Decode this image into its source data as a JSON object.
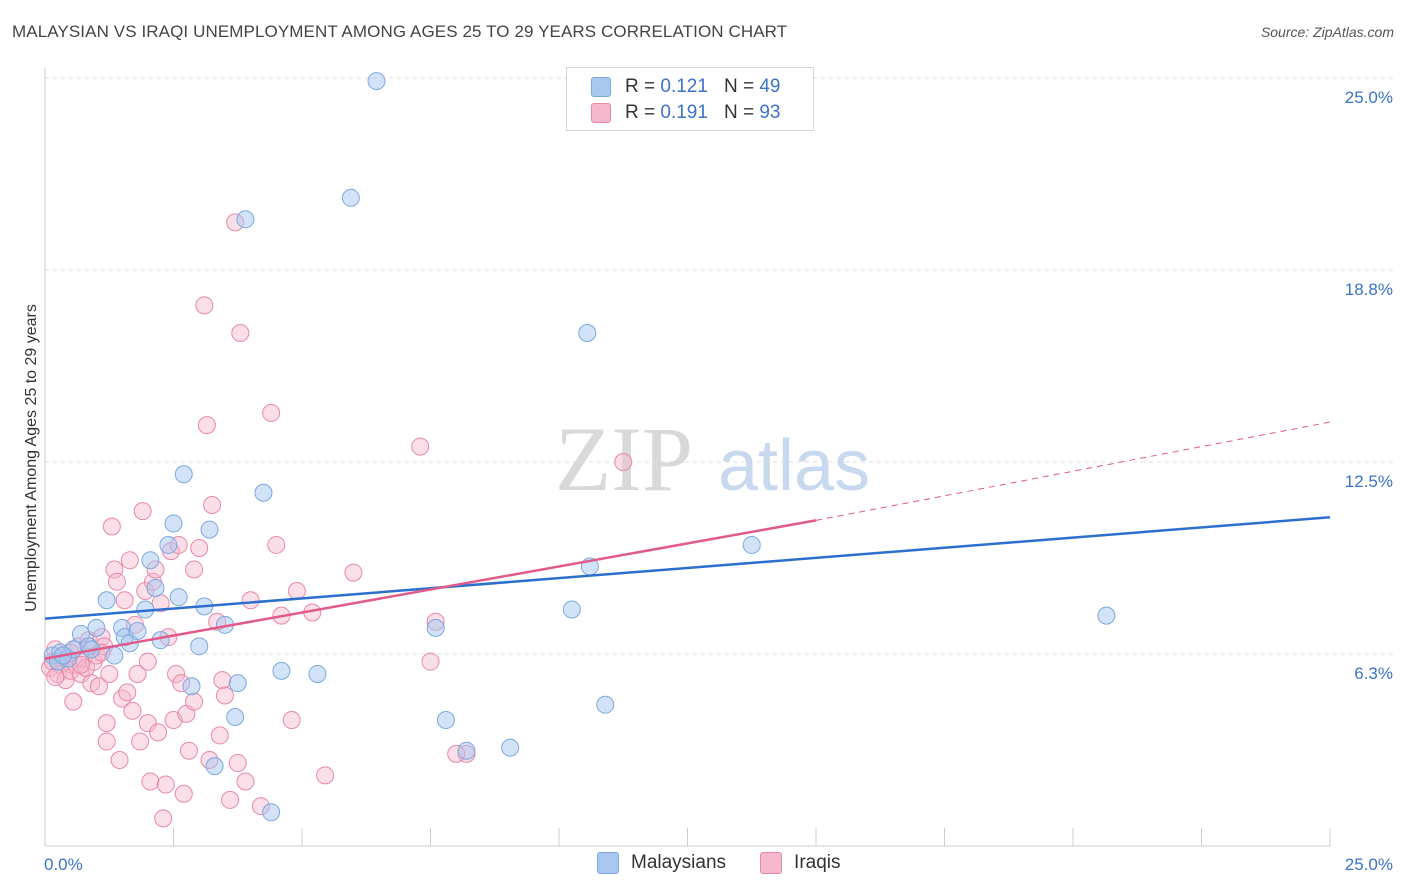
{
  "header": {
    "title": "MALAYSIAN VS IRAQI UNEMPLOYMENT AMONG AGES 25 TO 29 YEARS CORRELATION CHART",
    "source": "Source: ZipAtlas.com"
  },
  "watermark": {
    "zip": "ZIP",
    "atlas": "atlas"
  },
  "legend": {
    "malaysians": {
      "r_label": "R =",
      "r_value": "0.121",
      "n_label": "N =",
      "n_value": "49"
    },
    "iraqis": {
      "r_label": "R =",
      "r_value": "0.191",
      "n_label": "N =",
      "n_value": "93"
    }
  },
  "bottom_legend": {
    "malaysians": "Malaysians",
    "iraqis": "Iraqis"
  },
  "colors": {
    "blue_fill": "#a8c8f0",
    "blue_stroke": "#7aa8e0",
    "blue_line": "#2c6fcf",
    "pink_fill": "#f5b8cc",
    "pink_stroke": "#e888a8",
    "pink_line": "#e05a8a",
    "tick_text": "#3b73c9",
    "grid": "#dddddd"
  },
  "chart_data": {
    "type": "scatter",
    "title": "MALAYSIAN VS IRAQI UNEMPLOYMENT AMONG AGES 25 TO 29 YEARS CORRELATION CHART",
    "xlabel": "",
    "ylabel": "Unemployment Among Ages 25 to 29 years",
    "xlim": [
      0,
      25
    ],
    "ylim": [
      0,
      25
    ],
    "x_tick_labels": [
      "0.0%",
      "25.0%"
    ],
    "y_ticks": [
      6.25,
      12.5,
      18.75,
      25.0
    ],
    "y_tick_labels": [
      "6.3%",
      "12.5%",
      "18.8%",
      "25.0%"
    ],
    "grid": true,
    "series": [
      {
        "name": "Malaysians",
        "r": 0.121,
        "n": 49,
        "trend": {
          "x": [
            0,
            25
          ],
          "y": [
            7.4,
            10.7
          ]
        },
        "points": [
          [
            0.15,
            6.2
          ],
          [
            0.25,
            6.0
          ],
          [
            0.3,
            6.3
          ],
          [
            0.45,
            6.1
          ],
          [
            0.55,
            6.4
          ],
          [
            0.7,
            6.9
          ],
          [
            0.85,
            6.5
          ],
          [
            0.9,
            6.4
          ],
          [
            1.0,
            7.1
          ],
          [
            1.2,
            8.0
          ],
          [
            1.35,
            6.2
          ],
          [
            1.5,
            7.1
          ],
          [
            1.55,
            6.8
          ],
          [
            1.65,
            6.6
          ],
          [
            1.8,
            7.0
          ],
          [
            1.95,
            7.7
          ],
          [
            2.05,
            9.3
          ],
          [
            2.15,
            8.4
          ],
          [
            2.25,
            6.7
          ],
          [
            2.4,
            9.8
          ],
          [
            2.5,
            10.5
          ],
          [
            2.6,
            8.1
          ],
          [
            2.7,
            12.1
          ],
          [
            2.85,
            5.2
          ],
          [
            3.0,
            6.5
          ],
          [
            3.1,
            7.8
          ],
          [
            3.2,
            10.3
          ],
          [
            3.3,
            2.6
          ],
          [
            3.5,
            7.2
          ],
          [
            3.7,
            4.2
          ],
          [
            3.75,
            5.3
          ],
          [
            3.9,
            20.4
          ],
          [
            4.25,
            11.5
          ],
          [
            4.4,
            1.1
          ],
          [
            4.6,
            5.7
          ],
          [
            5.3,
            5.6
          ],
          [
            5.95,
            21.1
          ],
          [
            6.45,
            24.9
          ],
          [
            7.6,
            7.1
          ],
          [
            7.8,
            4.1
          ],
          [
            8.2,
            3.1
          ],
          [
            9.05,
            3.2
          ],
          [
            10.25,
            7.7
          ],
          [
            10.55,
            16.7
          ],
          [
            10.6,
            9.1
          ],
          [
            10.9,
            4.6
          ],
          [
            13.75,
            9.8
          ],
          [
            20.65,
            7.5
          ],
          [
            0.35,
            6.2
          ]
        ]
      },
      {
        "name": "Iraqis",
        "r": 0.191,
        "n": 93,
        "trend": {
          "x": [
            0,
            15
          ],
          "y": [
            6.1,
            10.6
          ]
        },
        "trend_extension": {
          "x": [
            15,
            25
          ],
          "y": [
            10.6,
            13.8
          ]
        },
        "points": [
          [
            0.1,
            5.8
          ],
          [
            0.15,
            6.0
          ],
          [
            0.2,
            6.4
          ],
          [
            0.25,
            5.6
          ],
          [
            0.3,
            5.9
          ],
          [
            0.35,
            6.2
          ],
          [
            0.4,
            5.4
          ],
          [
            0.45,
            6.0
          ],
          [
            0.5,
            5.7
          ],
          [
            0.55,
            4.7
          ],
          [
            0.6,
            5.9
          ],
          [
            0.65,
            6.5
          ],
          [
            0.7,
            5.6
          ],
          [
            0.75,
            6.1
          ],
          [
            0.8,
            5.8
          ],
          [
            0.85,
            6.7
          ],
          [
            0.9,
            5.3
          ],
          [
            0.95,
            6.0
          ],
          [
            1.0,
            6.2
          ],
          [
            1.05,
            5.2
          ],
          [
            1.1,
            6.8
          ],
          [
            1.15,
            6.5
          ],
          [
            1.2,
            4.0
          ],
          [
            1.25,
            5.6
          ],
          [
            1.3,
            10.4
          ],
          [
            1.35,
            9.0
          ],
          [
            1.4,
            8.6
          ],
          [
            1.45,
            2.8
          ],
          [
            1.5,
            4.8
          ],
          [
            1.55,
            8.0
          ],
          [
            1.6,
            5.0
          ],
          [
            1.65,
            9.3
          ],
          [
            1.7,
            4.4
          ],
          [
            1.75,
            7.2
          ],
          [
            1.8,
            5.6
          ],
          [
            1.85,
            3.4
          ],
          [
            1.9,
            10.9
          ],
          [
            1.95,
            8.3
          ],
          [
            2.0,
            4.0
          ],
          [
            2.05,
            2.1
          ],
          [
            2.1,
            8.6
          ],
          [
            2.15,
            9.0
          ],
          [
            2.2,
            3.7
          ],
          [
            2.25,
            7.9
          ],
          [
            2.3,
            0.9
          ],
          [
            2.35,
            2.0
          ],
          [
            2.4,
            6.8
          ],
          [
            2.45,
            9.6
          ],
          [
            2.5,
            4.1
          ],
          [
            2.55,
            5.6
          ],
          [
            2.6,
            9.8
          ],
          [
            2.65,
            5.3
          ],
          [
            2.7,
            1.7
          ],
          [
            2.75,
            4.3
          ],
          [
            2.8,
            3.1
          ],
          [
            2.9,
            9.0
          ],
          [
            3.0,
            9.7
          ],
          [
            3.1,
            17.6
          ],
          [
            3.15,
            13.7
          ],
          [
            3.2,
            2.8
          ],
          [
            3.25,
            11.1
          ],
          [
            3.35,
            7.3
          ],
          [
            3.4,
            3.6
          ],
          [
            3.45,
            5.4
          ],
          [
            3.5,
            4.9
          ],
          [
            3.6,
            1.5
          ],
          [
            3.7,
            20.3
          ],
          [
            3.75,
            2.7
          ],
          [
            3.8,
            16.7
          ],
          [
            3.9,
            2.1
          ],
          [
            4.0,
            8.0
          ],
          [
            4.2,
            1.3
          ],
          [
            4.4,
            14.1
          ],
          [
            4.5,
            9.8
          ],
          [
            4.6,
            7.5
          ],
          [
            4.8,
            4.1
          ],
          [
            4.9,
            8.3
          ],
          [
            5.2,
            7.6
          ],
          [
            5.45,
            2.3
          ],
          [
            6.0,
            8.9
          ],
          [
            7.3,
            13.0
          ],
          [
            7.5,
            6.0
          ],
          [
            7.6,
            7.3
          ],
          [
            8.2,
            3.0
          ],
          [
            11.25,
            12.5
          ],
          [
            0.2,
            5.5
          ],
          [
            1.1,
            6.3
          ],
          [
            0.7,
            5.9
          ],
          [
            0.5,
            6.3
          ],
          [
            2.0,
            6.0
          ],
          [
            1.2,
            3.4
          ],
          [
            2.9,
            4.7
          ],
          [
            8.0,
            3.0
          ]
        ]
      }
    ]
  }
}
